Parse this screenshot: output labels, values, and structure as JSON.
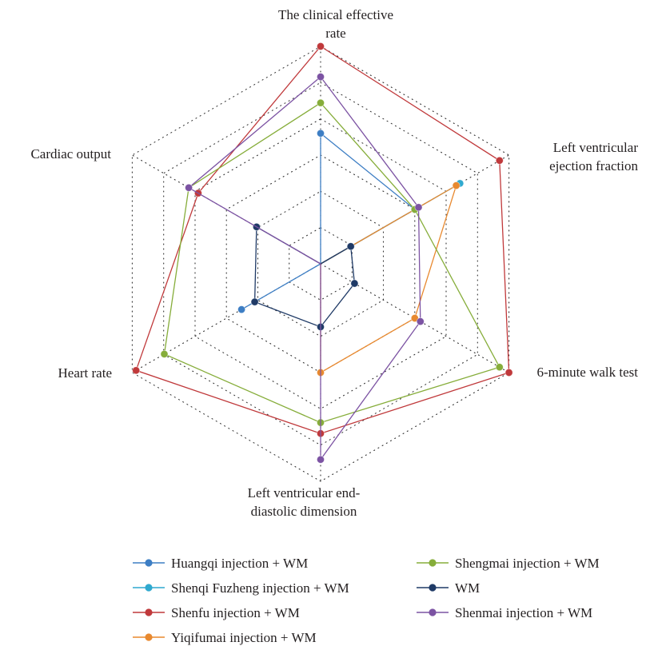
{
  "chart_data": {
    "type": "radar",
    "axes": [
      [
        "The clinical effective",
        "rate"
      ],
      [
        "Left ventricular",
        "ejection fraction"
      ],
      [
        "6-minute walk test"
      ],
      [
        "Left ventricular end-",
        "diastolic dimension"
      ],
      [
        "Heart rate"
      ],
      [
        "Cardiac output"
      ]
    ],
    "scale": {
      "min": 0,
      "max": 1,
      "rings": 6
    },
    "grid": "dotted",
    "legend_position": "bottom",
    "series": [
      {
        "name": "Huangqi injection + WM",
        "color": "#3d7ec4",
        "values": [
          0.6,
          0.5,
          0,
          0,
          0.42,
          0
        ]
      },
      {
        "name": "Shenqi Fuzheng injection + WM",
        "color": "#2fa9cf",
        "values": [
          0,
          0.74,
          0,
          0,
          0,
          0
        ]
      },
      {
        "name": "Shenfu injection + WM",
        "color": "#c0393b",
        "values": [
          1,
          0.95,
          1.0,
          0.78,
          0.98,
          0.65
        ]
      },
      {
        "name": "Yiqifumai injection + WM",
        "color": "#e8892f",
        "values": [
          0,
          0.72,
          0.5,
          0.5,
          0,
          0
        ]
      },
      {
        "name": "Shengmai injection + WM",
        "color": "#86ad3a",
        "values": [
          0.74,
          0.5,
          0.95,
          0.73,
          0.83,
          0.7
        ]
      },
      {
        "name": "WM",
        "color": "#1f3a66",
        "values": [
          0,
          0.16,
          0.18,
          0.29,
          0.35,
          0.34
        ]
      },
      {
        "name": "Shenmai injection + WM",
        "color": "#7c53a3",
        "values": [
          0.86,
          0.52,
          0.53,
          0.9,
          0,
          0.7
        ]
      }
    ]
  }
}
